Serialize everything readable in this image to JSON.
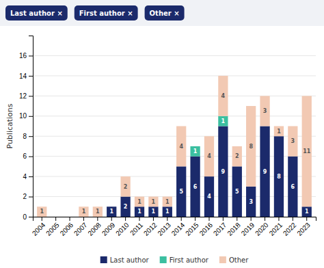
{
  "chart_data": {
    "type": "bar",
    "stacked": true,
    "categories": [
      "2004",
      "2005",
      "2006",
      "2007",
      "2008",
      "2009",
      "2010",
      "2011",
      "2012",
      "2013",
      "2014",
      "2015",
      "2016",
      "2017",
      "2018",
      "2019",
      "2020",
      "2021",
      "2022",
      "2023"
    ],
    "series": [
      {
        "name": "Last author",
        "color": "#1b2a6b",
        "values": [
          0,
          0,
          0,
          0,
          0,
          1,
          2,
          1,
          1,
          1,
          5,
          6,
          4,
          9,
          5,
          3,
          9,
          8,
          6,
          1
        ]
      },
      {
        "name": "First author",
        "color": "#3bbfa0",
        "values": [
          0,
          0,
          0,
          0,
          0,
          0,
          0,
          0,
          0,
          0,
          0,
          1,
          0,
          1,
          0,
          0,
          0,
          0,
          0,
          0
        ]
      },
      {
        "name": "Other",
        "color": "#f2c9b3",
        "values": [
          1,
          0,
          0,
          1,
          1,
          0,
          2,
          1,
          1,
          1,
          4,
          0,
          4,
          4,
          2,
          8,
          3,
          1,
          3,
          11
        ]
      }
    ],
    "ylabel": "Publications",
    "ylim": [
      0,
      18
    ],
    "yticks": [
      0,
      2,
      4,
      6,
      8,
      10,
      12,
      14,
      16
    ],
    "grid": true,
    "legend": "bottom",
    "data_labels": true,
    "annotations": [
      "Last author ×",
      "First author ×",
      "Other ×"
    ]
  }
}
